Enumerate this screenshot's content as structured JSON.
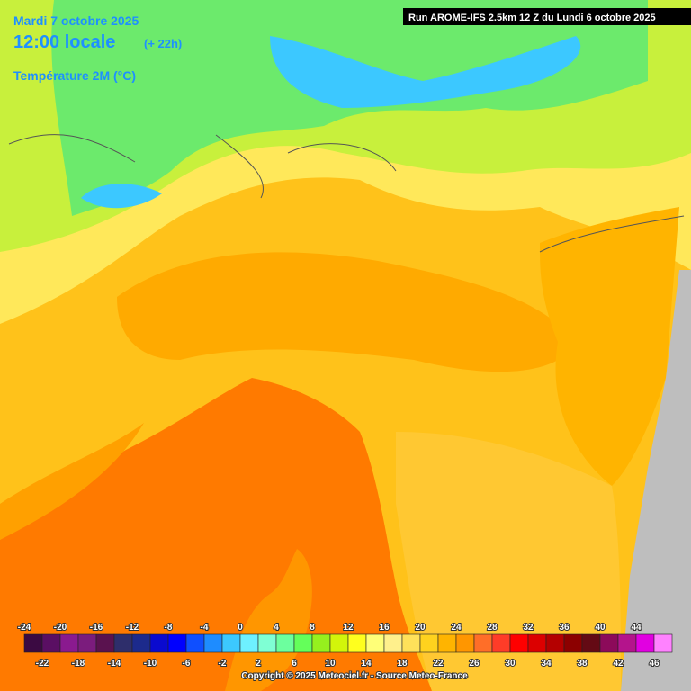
{
  "header": {
    "date": "Mardi 7 octobre 2025",
    "time": "12:00 locale",
    "lead": "(+ 22h)",
    "parameter": "Température 2M (°C)"
  },
  "run": "Run AROME-IFS 2.5km 12 Z du Lundi 6 octobre 2025",
  "legend": {
    "steps": [
      {
        "value": -24,
        "color": "#3b0a42"
      },
      {
        "value": -22,
        "color": "#5a0f63"
      },
      {
        "value": -20,
        "color": "#8a1a8f"
      },
      {
        "value": -18,
        "color": "#7b1c7d"
      },
      {
        "value": -16,
        "color": "#5a124f"
      },
      {
        "value": -14,
        "color": "#2e2e6b"
      },
      {
        "value": -12,
        "color": "#1c2a8c"
      },
      {
        "value": -10,
        "color": "#0a0acf"
      },
      {
        "value": -8,
        "color": "#0000ff"
      },
      {
        "value": -6,
        "color": "#0f4fff"
      },
      {
        "value": -4,
        "color": "#1e8cff"
      },
      {
        "value": -2,
        "color": "#3cc8ff"
      },
      {
        "value": 0,
        "color": "#6ef0ff"
      },
      {
        "value": 2,
        "color": "#7fffd4"
      },
      {
        "value": 4,
        "color": "#6cff9e"
      },
      {
        "value": 6,
        "color": "#64ff5a"
      },
      {
        "value": 8,
        "color": "#96f01e"
      },
      {
        "value": 10,
        "color": "#d2f50a"
      },
      {
        "value": 12,
        "color": "#ffff1e"
      },
      {
        "value": 14,
        "color": "#ffff78"
      },
      {
        "value": 16,
        "color": "#fff08c"
      },
      {
        "value": 18,
        "color": "#ffe15a"
      },
      {
        "value": 20,
        "color": "#ffd21e"
      },
      {
        "value": 22,
        "color": "#ffb400"
      },
      {
        "value": 24,
        "color": "#ff9600"
      },
      {
        "value": 26,
        "color": "#ff6e28"
      },
      {
        "value": 28,
        "color": "#ff3c28"
      },
      {
        "value": 30,
        "color": "#ff0000"
      },
      {
        "value": 32,
        "color": "#dc0000"
      },
      {
        "value": 34,
        "color": "#b40000"
      },
      {
        "value": 36,
        "color": "#8c0000"
      },
      {
        "value": 38,
        "color": "#640a14"
      },
      {
        "value": 40,
        "color": "#8c0a5a"
      },
      {
        "value": 42,
        "color": "#b4148c"
      },
      {
        "value": 44,
        "color": "#e100e1"
      },
      {
        "value": 46,
        "color": "#ff82ff"
      }
    ]
  },
  "copyright": "Copyright © 2025 Meteociel.fr - Source Meteo-France"
}
